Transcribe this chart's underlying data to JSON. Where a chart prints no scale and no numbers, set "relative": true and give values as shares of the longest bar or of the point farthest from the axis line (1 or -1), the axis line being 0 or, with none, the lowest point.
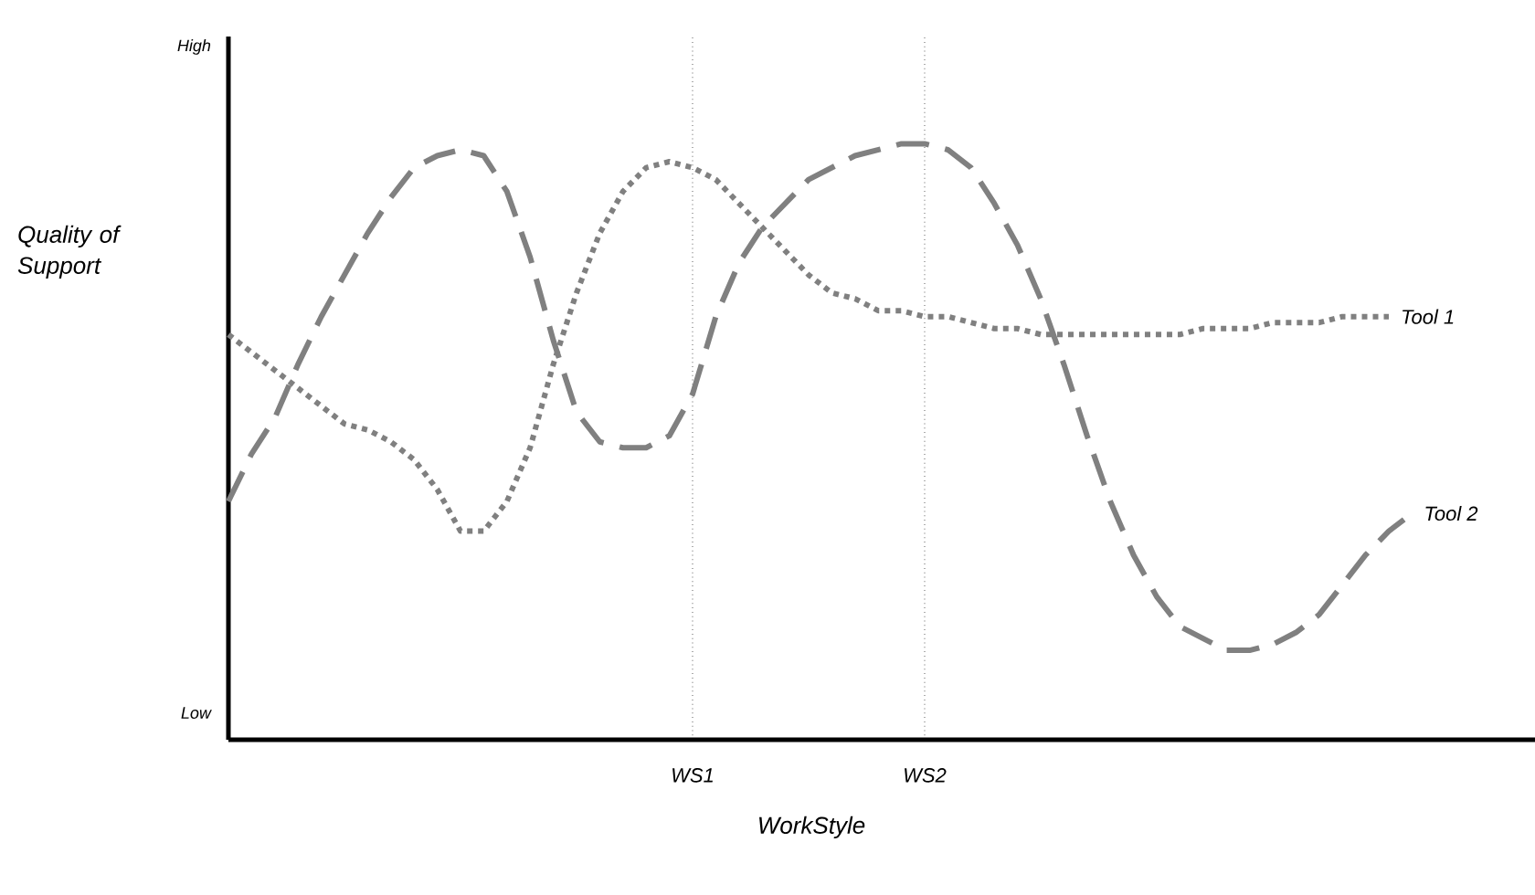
{
  "chart_data": {
    "type": "line",
    "relative": true,
    "xlabel": "WorkStyle",
    "ylabel": "Quality of Support",
    "annotations": [
      "High",
      "Low"
    ],
    "categories": [
      null,
      null,
      null,
      null,
      null,
      null,
      null,
      null,
      null,
      null,
      null,
      null,
      null,
      null,
      null,
      null,
      null,
      null,
      null,
      null,
      "WS1",
      null,
      null,
      null,
      null,
      null,
      null,
      null,
      null,
      null,
      "WS2",
      null,
      null,
      null,
      null,
      null,
      null,
      null,
      null,
      null,
      null,
      null,
      null,
      null,
      null,
      null,
      null,
      null,
      null,
      null,
      null,
      null,
      null,
      null,
      null,
      null,
      null
    ],
    "series": [
      {
        "name": "Tool 1",
        "color": "#808080",
        "line_style": "dotted",
        "values": [
          0.68,
          0.65,
          0.62,
          0.59,
          0.56,
          0.53,
          0.52,
          0.5,
          0.47,
          0.42,
          0.35,
          0.35,
          0.4,
          0.49,
          0.63,
          0.75,
          0.85,
          0.92,
          0.96,
          0.97,
          0.96,
          0.94,
          0.9,
          0.86,
          0.82,
          0.78,
          0.75,
          0.74,
          0.72,
          0.72,
          0.71,
          0.71,
          0.7,
          0.69,
          0.69,
          0.68,
          0.68,
          0.68,
          0.68,
          0.68,
          0.68,
          0.68,
          0.69,
          0.69,
          0.69,
          0.7,
          0.7,
          0.7,
          0.71,
          0.71,
          0.71,
          null,
          null,
          null,
          null,
          null,
          null
        ]
      },
      {
        "name": "Tool 2",
        "color": "#808080",
        "line_style": "dashed",
        "values": [
          0.4,
          0.48,
          0.54,
          0.63,
          0.71,
          0.78,
          0.85,
          0.91,
          0.96,
          0.98,
          0.99,
          0.98,
          0.92,
          0.81,
          0.67,
          0.55,
          0.5,
          0.49,
          0.49,
          0.51,
          0.58,
          0.71,
          0.8,
          0.86,
          0.9,
          0.94,
          0.96,
          0.98,
          0.99,
          1.0,
          1.0,
          0.99,
          0.96,
          0.9,
          0.83,
          0.74,
          0.63,
          0.51,
          0.4,
          0.31,
          0.24,
          0.19,
          0.17,
          0.15,
          0.15,
          0.16,
          0.18,
          0.21,
          0.26,
          0.31,
          0.35,
          0.38,
          null,
          null,
          null,
          null,
          null
        ]
      }
    ],
    "grid": "x"
  }
}
